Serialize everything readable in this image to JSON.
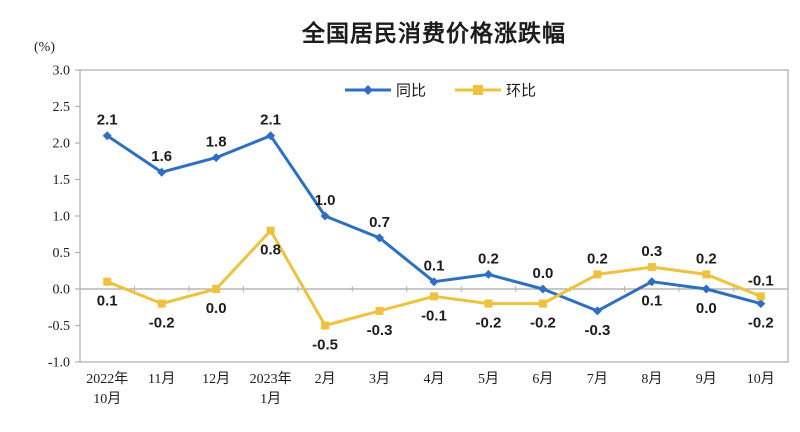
{
  "chart_data": {
    "type": "line",
    "title": "全国居民消费价格涨跌幅",
    "unit_label": "(%)",
    "categories": [
      "2022年\n10月",
      "11月",
      "12月",
      "2023年\n1月",
      "2月",
      "3月",
      "4月",
      "5月",
      "6月",
      "7月",
      "8月",
      "9月",
      "10月"
    ],
    "series": [
      {
        "id": "yoy",
        "name": "同比",
        "color": "#2e6fc0",
        "marker": "diamond",
        "values": [
          2.1,
          1.6,
          1.8,
          2.1,
          1.0,
          0.7,
          0.1,
          0.2,
          0.0,
          -0.3,
          0.1,
          0.0,
          -0.2
        ]
      },
      {
        "id": "mom",
        "name": "环比",
        "color": "#eec23e",
        "marker": "square",
        "values": [
          0.1,
          -0.2,
          0.0,
          0.8,
          -0.5,
          -0.3,
          -0.1,
          -0.2,
          -0.2,
          0.2,
          0.3,
          0.2,
          -0.1
        ]
      }
    ],
    "ylim": [
      -1.0,
      3.0
    ],
    "y_ticks": [
      "3.0",
      "2.5",
      "2.0",
      "1.5",
      "1.0",
      "0.5",
      "0.0",
      "-0.5",
      "-1.0"
    ],
    "grid": false,
    "legend_position": "top-center-inside",
    "data_labels": true,
    "colors": {
      "plot_border": "#b3b3b3",
      "zero_axis": "#a8a8a8",
      "text": "#1c1c1c"
    }
  }
}
